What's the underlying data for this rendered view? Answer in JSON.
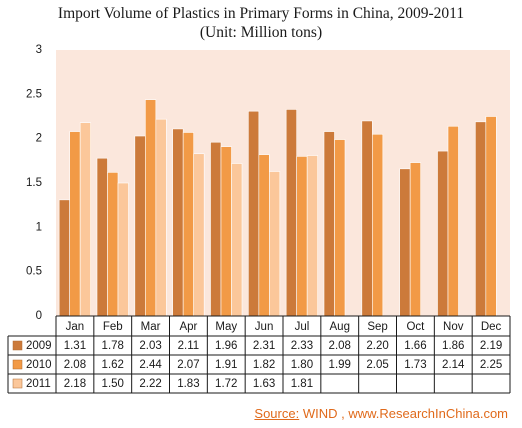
{
  "chart_data": {
    "type": "bar",
    "title": "Import Volume of Plastics in Primary Forms in China, 2009-2011",
    "subtitle": "(Unit: Million tons)",
    "categories": [
      "Jan",
      "Feb",
      "Mar",
      "Apr",
      "May",
      "Jun",
      "Jul",
      "Aug",
      "Sep",
      "Oct",
      "Nov",
      "Dec"
    ],
    "series": [
      {
        "name": "2009",
        "color": "#cc7a3a",
        "values": [
          1.31,
          1.78,
          2.03,
          2.11,
          1.96,
          2.31,
          2.33,
          2.08,
          2.2,
          1.66,
          1.86,
          2.19
        ]
      },
      {
        "name": "2010",
        "color": "#f29a46",
        "values": [
          2.08,
          1.62,
          2.44,
          2.07,
          1.91,
          1.82,
          1.8,
          1.99,
          2.05,
          1.73,
          2.14,
          2.25
        ]
      },
      {
        "name": "2011",
        "color": "#fbc79a",
        "values": [
          2.18,
          1.5,
          2.22,
          1.83,
          1.72,
          1.63,
          1.81,
          null,
          null,
          null,
          null,
          null
        ]
      }
    ],
    "series_labels": [
      [
        "1.31",
        "1.78",
        "2.03",
        "2.11",
        "1.96",
        "2.31",
        "2.33",
        "2.08",
        "2.20",
        "1.66",
        "1.86",
        "2.19"
      ],
      [
        "2.08",
        "1.62",
        "2.44",
        "2.07",
        "1.91",
        "1.82",
        "1.80",
        "1.99",
        "2.05",
        "1.73",
        "2.14",
        "2.25"
      ],
      [
        "2.18",
        "1.50",
        "2.22",
        "1.83",
        "1.72",
        "1.63",
        "1.81",
        "",
        "",
        "",
        "",
        ""
      ]
    ],
    "yticks": [
      "0",
      "0.5",
      "1",
      "1.5",
      "2",
      "2.5",
      "3"
    ],
    "ylim": [
      0,
      3
    ],
    "data_table": true,
    "plot_background": "#fbe7dc"
  },
  "source": {
    "label": "Source:",
    "text": " WIND , www.ResearchInChina.com"
  }
}
